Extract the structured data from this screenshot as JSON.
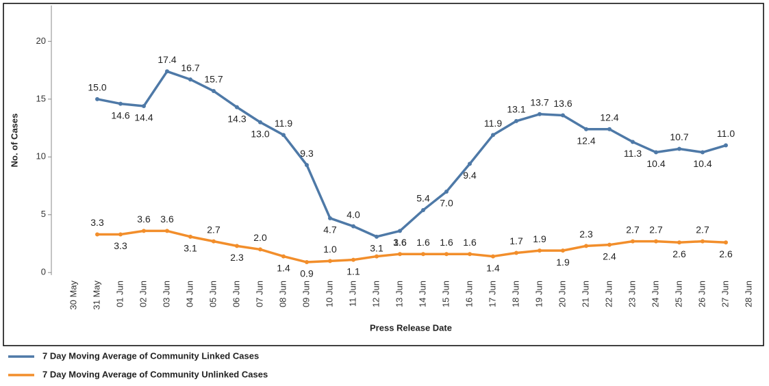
{
  "chart_data": {
    "type": "line",
    "x_label": "Press Release Date",
    "y_label": "No. of Cases",
    "categories": [
      "30 May",
      "31 May",
      "01 Jun",
      "02 Jun",
      "03 Jun",
      "04 Jun",
      "05 Jun",
      "06 Jun",
      "07 Jun",
      "08 Jun",
      "09 Jun",
      "10 Jun",
      "11 Jun",
      "12 Jun",
      "13 Jun",
      "14 Jun",
      "15 Jun",
      "16 Jun",
      "17 Jun",
      "18 Jun",
      "19 Jun",
      "20 Jun",
      "21 Jun",
      "22 Jun",
      "23 Jun",
      "24 Jun",
      "25 Jun",
      "26 Jun",
      "27 Jun",
      "28 Jun"
    ],
    "series": [
      {
        "name": "7 Day Moving Average of Community Linked Cases",
        "color": "#4e79a7",
        "values": [
          null,
          15.0,
          14.6,
          14.4,
          17.4,
          16.7,
          15.7,
          14.3,
          13.0,
          11.9,
          9.3,
          4.7,
          4.0,
          3.1,
          3.6,
          5.4,
          7.0,
          9.4,
          11.9,
          13.1,
          13.7,
          13.6,
          12.4,
          12.4,
          11.3,
          10.4,
          10.7,
          10.4,
          11.0,
          null
        ],
        "value_labels": [
          null,
          "15.0",
          "14.6",
          "14.4",
          "17.4",
          "16.7",
          "15.7",
          "14.3",
          "13.0",
          "11.9",
          "9.3",
          "4.7",
          "4.0",
          "3.1",
          "3.6",
          "5.4",
          "7.0",
          "9.4",
          "11.9",
          "13.1",
          "13.7",
          "13.6",
          "12.4",
          "12.4",
          "11.3",
          "10.4",
          "10.7",
          "10.4",
          "11.0",
          null
        ]
      },
      {
        "name": "7 Day Moving Average of Community Unlinked Cases",
        "color": "#f28e2b",
        "values": [
          null,
          3.3,
          3.3,
          3.6,
          3.6,
          3.1,
          2.7,
          2.3,
          2.0,
          1.4,
          0.9,
          1.0,
          1.1,
          1.4,
          1.6,
          1.6,
          1.6,
          1.6,
          1.4,
          1.7,
          1.9,
          1.9,
          2.3,
          2.4,
          2.7,
          2.7,
          2.6,
          2.7,
          2.6,
          null
        ],
        "value_labels": [
          null,
          "3.3",
          "3.3",
          "3.6",
          "3.6",
          "3.1",
          "2.7",
          "2.3",
          "2.0",
          "1.4",
          "0.9",
          "1.0",
          "1.1",
          null,
          "1.6",
          "1.6",
          "1.6",
          "1.6",
          "1.4",
          "1.7",
          "1.9",
          "1.9",
          "2.3",
          "2.4",
          "2.7",
          "2.7",
          "2.6",
          "2.7",
          "2.6",
          null
        ]
      }
    ],
    "ylim": [
      -0.2,
      23.1
    ],
    "yticks": [
      0,
      5,
      10,
      15,
      20
    ],
    "legend": "bottom-left"
  }
}
